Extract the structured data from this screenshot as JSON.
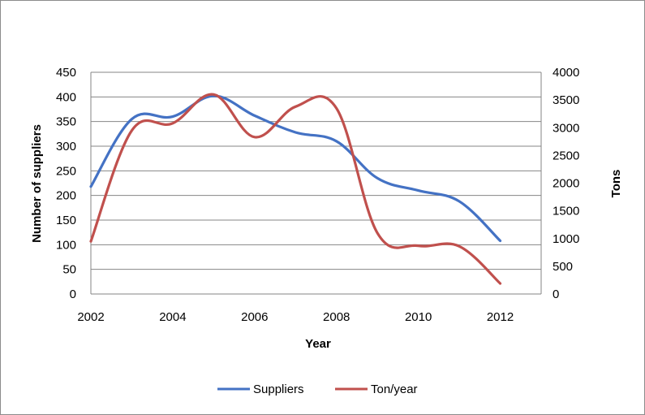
{
  "chart_data": {
    "type": "line",
    "x": [
      2002,
      2003,
      2004,
      2005,
      2006,
      2007,
      2008,
      2009,
      2010,
      2011,
      2012
    ],
    "xlabel": "Year",
    "ylabel_left": "Number of suppliers",
    "ylabel_right": "Tons",
    "xlim": [
      2002,
      2013
    ],
    "ylim_left": [
      0,
      450
    ],
    "ylim_right": [
      0,
      4000
    ],
    "x_ticks": [
      "2002",
      "2004",
      "2006",
      "2008",
      "2010",
      "2012"
    ],
    "y_ticks_left": [
      "0",
      "50",
      "100",
      "150",
      "200",
      "250",
      "300",
      "350",
      "400",
      "450"
    ],
    "y_ticks_right": [
      "0",
      "500",
      "1000",
      "1500",
      "2000",
      "2500",
      "3000",
      "3500",
      "4000"
    ],
    "grid": "horizontal",
    "legend_position": "bottom",
    "series": [
      {
        "name": "Suppliers",
        "axis": "left",
        "color": "#4472c4",
        "values": [
          218,
          355,
          360,
          402,
          362,
          328,
          310,
          235,
          210,
          188,
          108
        ]
      },
      {
        "name": "Ton/year",
        "axis": "right",
        "color": "#c0504d",
        "values": [
          950,
          2950,
          3080,
          3600,
          2830,
          3380,
          3350,
          1100,
          870,
          860,
          190
        ]
      }
    ]
  }
}
